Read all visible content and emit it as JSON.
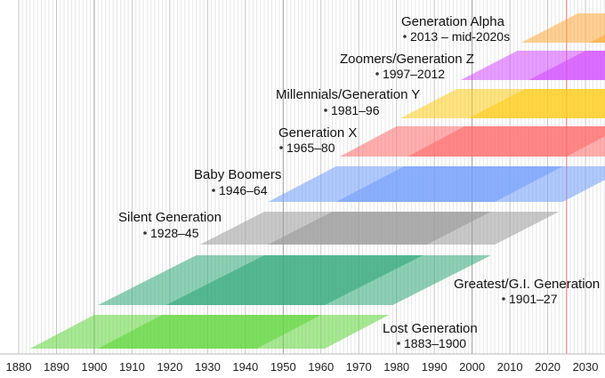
{
  "chart_data": {
    "type": "timeline",
    "x_range": [
      1880,
      2035
    ],
    "x_ticks": [
      1880,
      1890,
      1900,
      1910,
      1920,
      1930,
      1940,
      1950,
      1960,
      1970,
      1980,
      1990,
      2000,
      2010,
      2020,
      2030
    ],
    "x_tick_labels": [
      "1880",
      "1890",
      "1900",
      "1910",
      "1920",
      "1930",
      "1940",
      "1950",
      "1960",
      "1970",
      "1980",
      "1990",
      "2000",
      "2010",
      "2020",
      "2030"
    ],
    "current_year_marker": 2025,
    "grid": "yearly vertical lines",
    "generations": [
      {
        "name": "Lost Generation",
        "dates": "1883–1900",
        "start": 1883,
        "end": 1900,
        "color": "#5fd63a"
      },
      {
        "name": "Greatest/G.I. Generation",
        "dates": "1901–27",
        "start": 1901,
        "end": 1927,
        "color": "#2fa77a"
      },
      {
        "name": "Silent Generation",
        "dates": "1928–45",
        "start": 1928,
        "end": 1945,
        "color": "#9a9a9a"
      },
      {
        "name": "Baby Boomers",
        "dates": "1946–64",
        "start": 1946,
        "end": 1964,
        "color": "#6f9dfb"
      },
      {
        "name": "Generation X",
        "dates": "1965–80",
        "start": 1965,
        "end": 1980,
        "color": "#ff6b6b"
      },
      {
        "name": "Millennials/Generation Y",
        "dates": "1981–96",
        "start": 1981,
        "end": 1996,
        "color": "#ffcc1a"
      },
      {
        "name": "Zoomers/Generation Z",
        "dates": "1997–2012",
        "start": 1997,
        "end": 2012,
        "color": "#d24dff"
      },
      {
        "name": "Generation Alpha",
        "dates": "2013 – mid-2020s",
        "start": 2013,
        "end": null,
        "color": "#ffa838"
      }
    ]
  }
}
